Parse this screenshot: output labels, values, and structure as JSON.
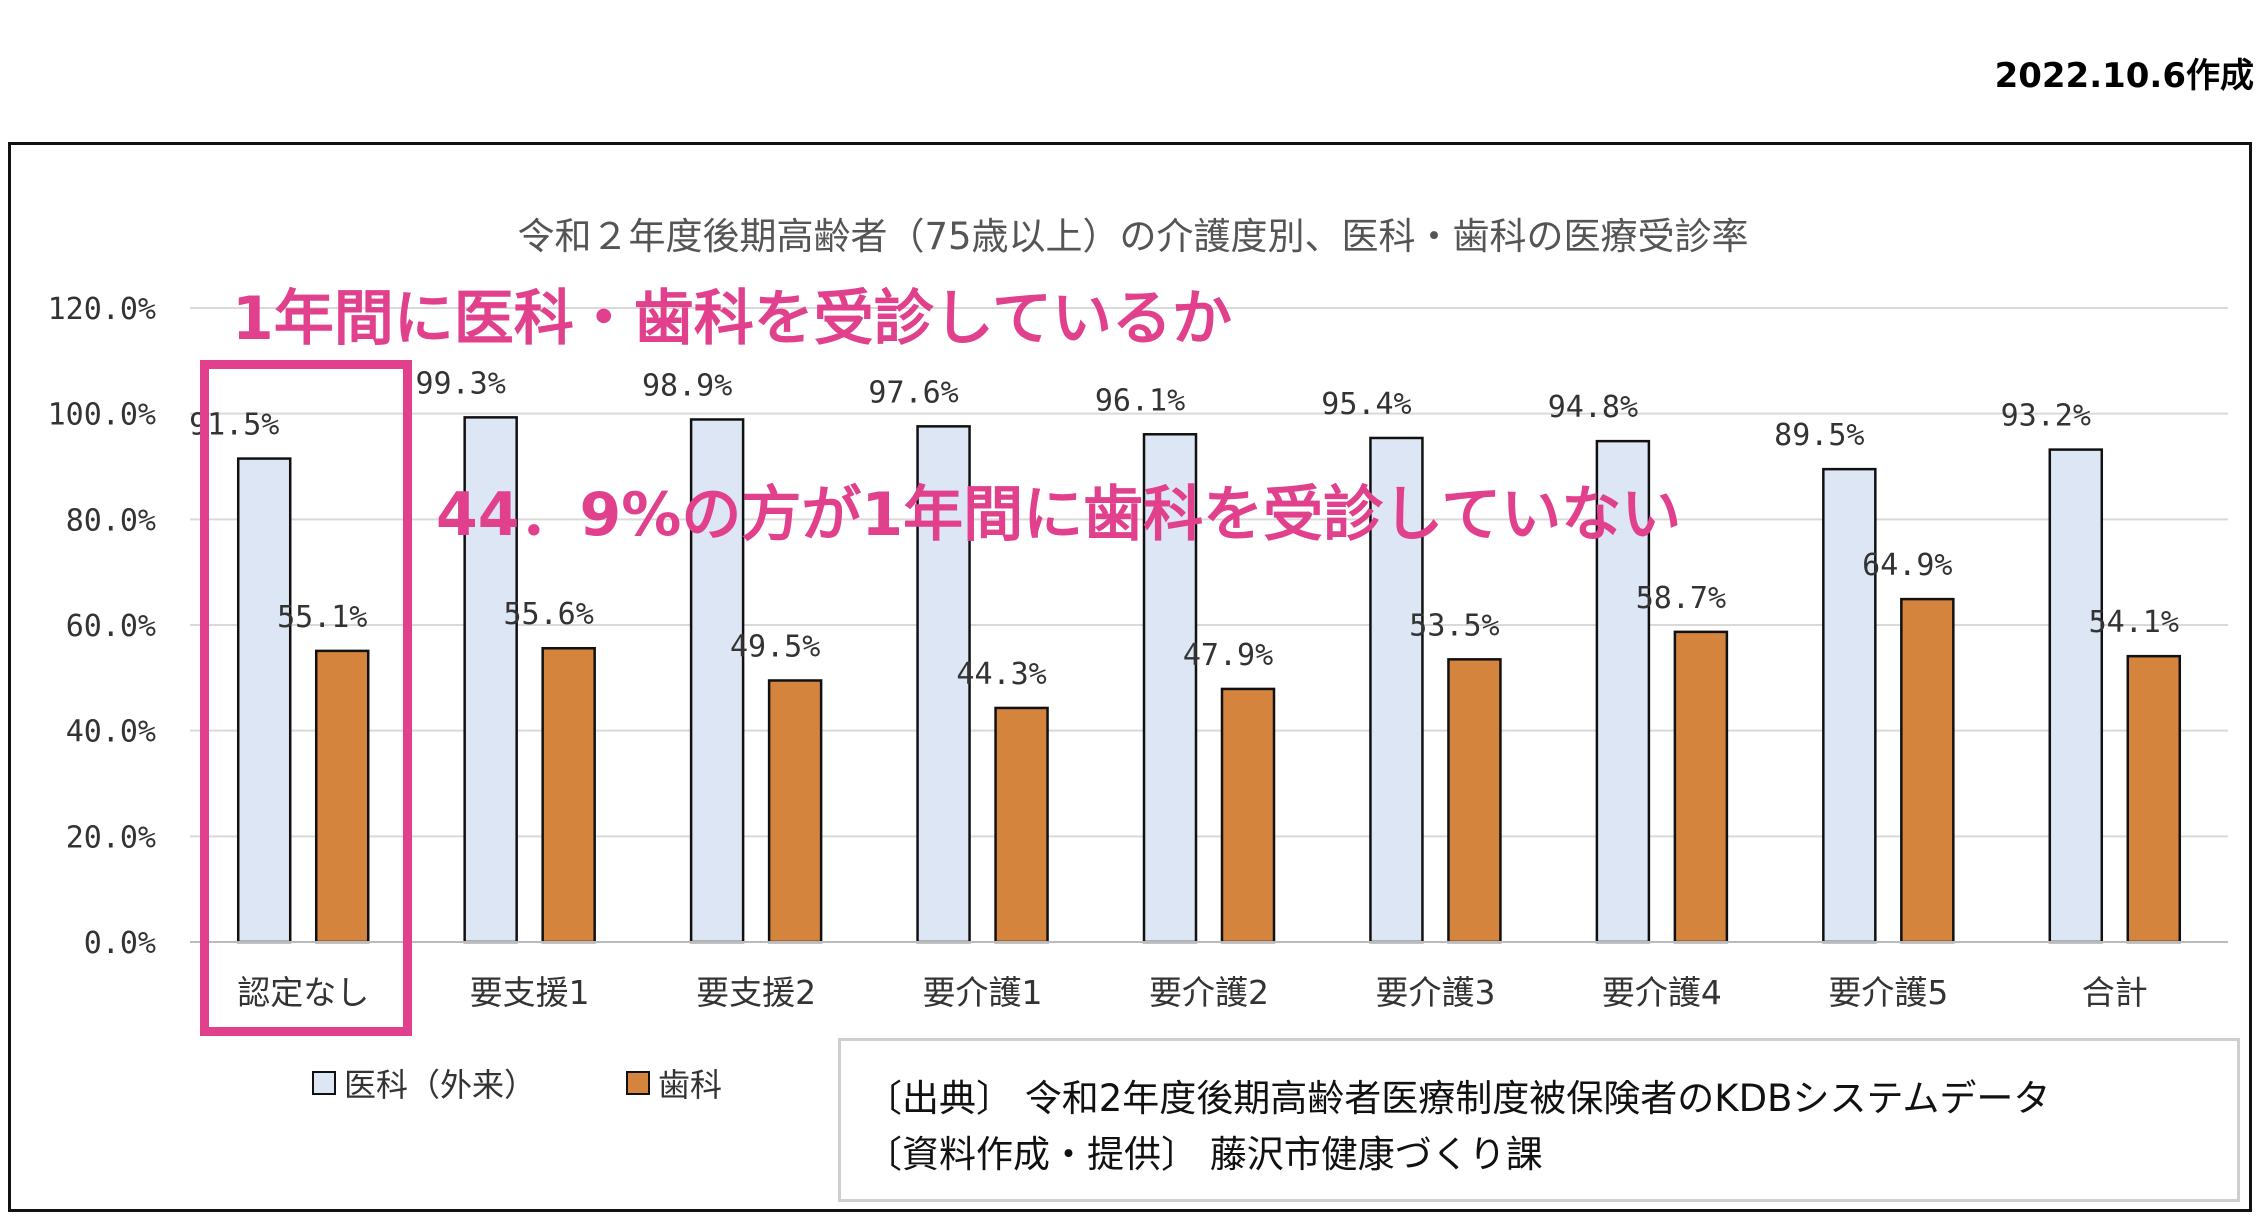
{
  "date_label": "2022.10.6作成",
  "chart_data": {
    "type": "bar",
    "title": "令和２年度後期高齢者（75歳以上）の介護度別、医科・歯科の医療受診率",
    "categories": [
      "認定なし",
      "要支援1",
      "要支援2",
      "要介護1",
      "要介護2",
      "要介護3",
      "要介護4",
      "要介護5",
      "合計"
    ],
    "series": [
      {
        "name": "医科（外来）",
        "values": [
          91.5,
          99.3,
          98.9,
          97.6,
          96.1,
          95.4,
          94.8,
          89.5,
          93.2
        ],
        "color": "#dde6f4"
      },
      {
        "name": "歯科",
        "values": [
          55.1,
          55.6,
          49.5,
          44.3,
          47.9,
          53.5,
          58.7,
          64.9,
          54.1
        ],
        "color": "#d5843e"
      }
    ],
    "y_ticks": [
      "0.0%",
      "20.0%",
      "40.0%",
      "60.0%",
      "80.0%",
      "100.0%",
      "120.0%"
    ],
    "ylim": [
      0,
      120
    ],
    "grid": true,
    "legend_position": "bottom-left"
  },
  "annotations": {
    "headline": "1年間に医科・歯科を受診しているか",
    "callout": "44．9%の方が1年間に歯科を受診していない",
    "highlight_color": "#e0408c"
  },
  "source_box": {
    "line1": "〔出典〕 令和2年度後期高齢者医療制度被保険者のKDBシステムデータ",
    "line2": "〔資料作成・提供〕 藤沢市健康づくり課"
  }
}
